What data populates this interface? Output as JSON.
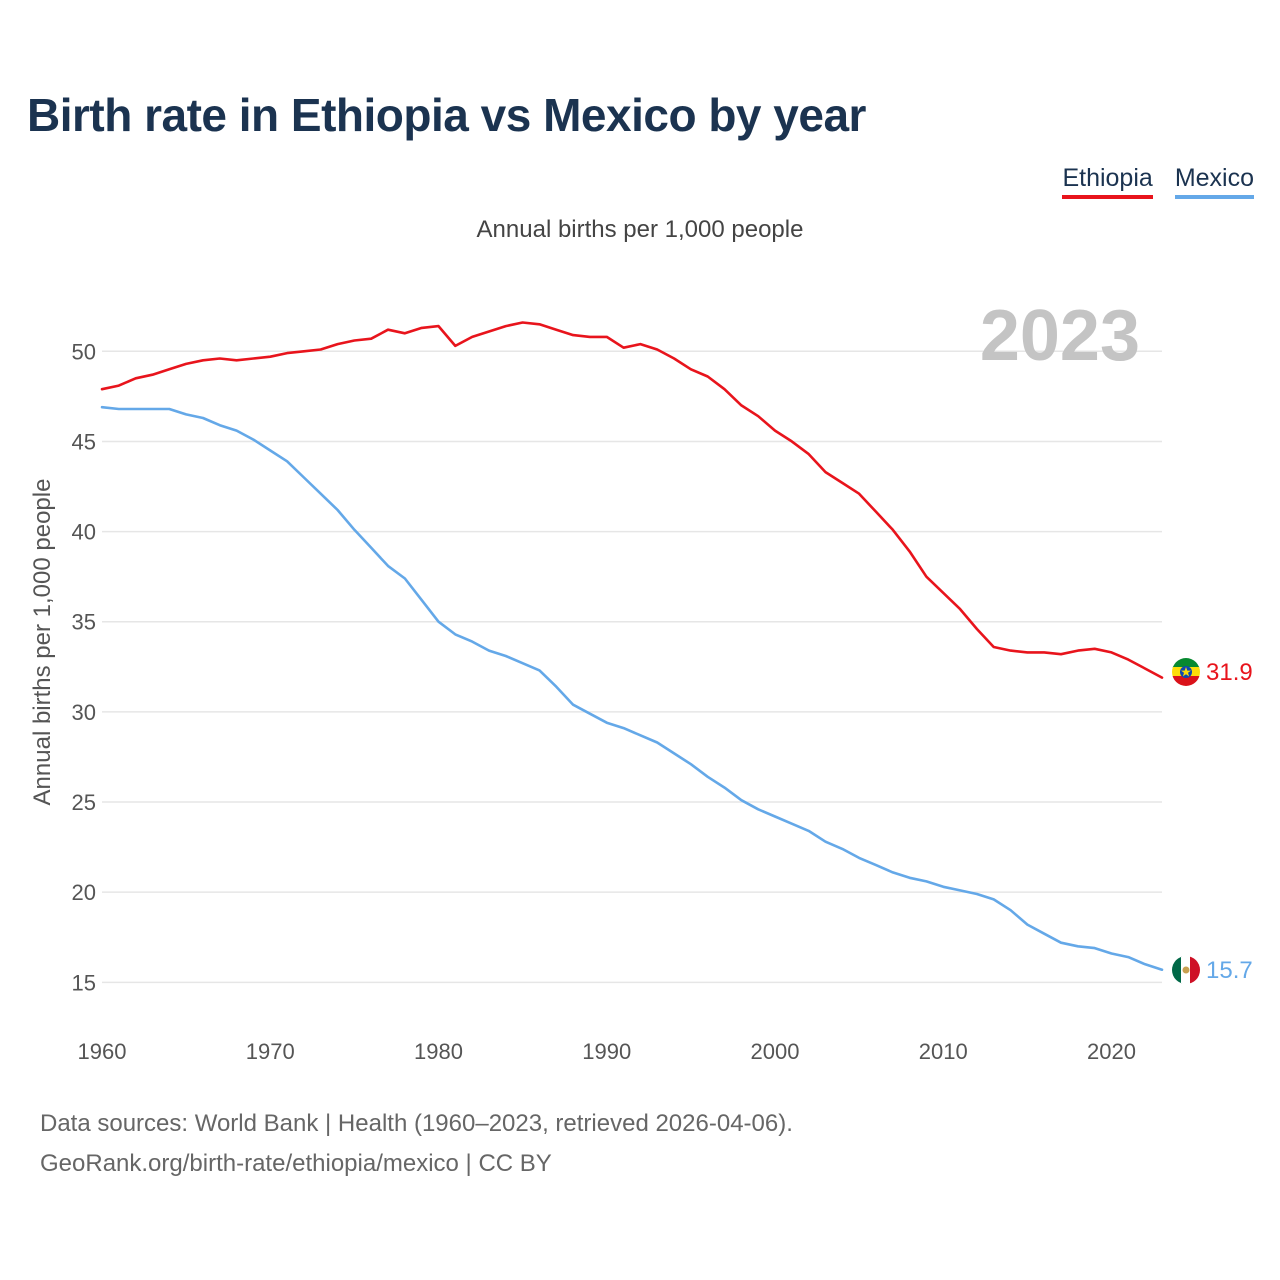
{
  "title": "Birth rate in Ethiopia vs Mexico by year",
  "legend": {
    "ethiopia": "Ethiopia",
    "mexico": "Mexico"
  },
  "subtitle": "Annual births per 1,000 people",
  "footer": {
    "line1": "Data sources: World Bank | Health (1960–2023, retrieved 2026-04-06).",
    "line2": "GeoRank.org/birth-rate/ethiopia/mexico | CC BY"
  },
  "colors": {
    "ethiopia": "#e8141c",
    "mexico": "#64a8e8",
    "grid": "#e6e6e6"
  },
  "chart_data": {
    "type": "line",
    "title": "Birth rate in Ethiopia vs Mexico by year",
    "ylabel": "Annual births per 1,000 people",
    "xlabel": "",
    "xlim": [
      1960,
      2023
    ],
    "ylim": [
      12.8,
      53.4
    ],
    "yticks": [
      15,
      20,
      25,
      30,
      35,
      40,
      45,
      50
    ],
    "xticks": [
      1960,
      1970,
      1980,
      1990,
      2000,
      2010,
      2020
    ],
    "year_label": "2023",
    "x": [
      1960,
      1961,
      1962,
      1963,
      1964,
      1965,
      1966,
      1967,
      1968,
      1969,
      1970,
      1971,
      1972,
      1973,
      1974,
      1975,
      1976,
      1977,
      1978,
      1979,
      1980,
      1981,
      1982,
      1983,
      1984,
      1985,
      1986,
      1987,
      1988,
      1989,
      1990,
      1991,
      1992,
      1993,
      1994,
      1995,
      1996,
      1997,
      1998,
      1999,
      2000,
      2001,
      2002,
      2003,
      2004,
      2005,
      2006,
      2007,
      2008,
      2009,
      2010,
      2011,
      2012,
      2013,
      2014,
      2015,
      2016,
      2017,
      2018,
      2019,
      2020,
      2021,
      2022,
      2023
    ],
    "series": [
      {
        "name": "Ethiopia",
        "color": "#e8141c",
        "end_label": "31.9",
        "values": [
          47.9,
          48.1,
          48.5,
          48.7,
          49.0,
          49.3,
          49.5,
          49.6,
          49.5,
          49.6,
          49.7,
          49.9,
          50.0,
          50.1,
          50.4,
          50.6,
          50.7,
          51.2,
          51.0,
          51.3,
          51.4,
          50.3,
          50.8,
          51.1,
          51.4,
          51.6,
          51.5,
          51.2,
          50.9,
          50.8,
          50.8,
          50.2,
          50.4,
          50.1,
          49.6,
          49.0,
          48.6,
          47.9,
          47.0,
          46.4,
          45.6,
          45.0,
          44.3,
          43.3,
          42.7,
          42.1,
          41.1,
          40.1,
          38.9,
          37.5,
          36.6,
          35.7,
          34.6,
          33.6,
          33.4,
          33.3,
          33.3,
          33.2,
          33.4,
          33.5,
          33.3,
          32.9,
          32.4,
          31.9
        ]
      },
      {
        "name": "Mexico",
        "color": "#64a8e8",
        "end_label": "15.7",
        "values": [
          46.9,
          46.8,
          46.8,
          46.8,
          46.8,
          46.5,
          46.3,
          45.9,
          45.6,
          45.1,
          44.5,
          43.9,
          43.0,
          42.1,
          41.2,
          40.1,
          39.1,
          38.1,
          37.4,
          36.2,
          35.0,
          34.3,
          33.9,
          33.4,
          33.1,
          32.7,
          32.3,
          31.4,
          30.4,
          29.9,
          29.4,
          29.1,
          28.7,
          28.3,
          27.7,
          27.1,
          26.4,
          25.8,
          25.1,
          24.6,
          24.2,
          23.8,
          23.4,
          22.8,
          22.4,
          21.9,
          21.5,
          21.1,
          20.8,
          20.6,
          20.3,
          20.1,
          19.9,
          19.6,
          19.0,
          18.2,
          17.7,
          17.2,
          17.0,
          16.9,
          16.6,
          16.4,
          16.0,
          15.7
        ]
      }
    ]
  }
}
